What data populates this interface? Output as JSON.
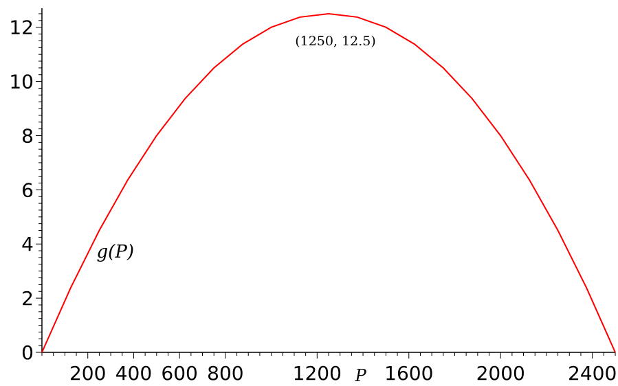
{
  "chart_data": {
    "type": "line",
    "title": "",
    "xlabel": "P",
    "ylabel": "",
    "xlim": [
      0,
      2500
    ],
    "ylim": [
      0,
      12.5
    ],
    "grid": false,
    "legend": "none",
    "x_ticks": [
      200,
      400,
      600,
      800,
      1200,
      1600,
      2000,
      2400
    ],
    "y_ticks": [
      0,
      2,
      4,
      6,
      8,
      10,
      12
    ],
    "series": [
      {
        "name": "g(P)",
        "color": "#ff0000",
        "x": [
          0,
          125,
          250,
          375,
          500,
          625,
          750,
          875,
          1000,
          1125,
          1250,
          1375,
          1500,
          1625,
          1750,
          1875,
          2000,
          2125,
          2250,
          2375,
          2500
        ],
        "y": [
          0,
          2.375,
          4.5,
          6.375,
          8,
          9.375,
          10.5,
          11.375,
          12,
          12.375,
          12.5,
          12.375,
          12,
          11.375,
          10.5,
          9.375,
          8,
          6.375,
          4.5,
          2.375,
          0
        ]
      }
    ],
    "annotations": [
      {
        "text": "(1250, 12.5)",
        "x": 1250,
        "y": 12.5
      },
      {
        "text": "g(P)",
        "x": 320,
        "y": 4
      }
    ],
    "axis_color": "#000000"
  }
}
